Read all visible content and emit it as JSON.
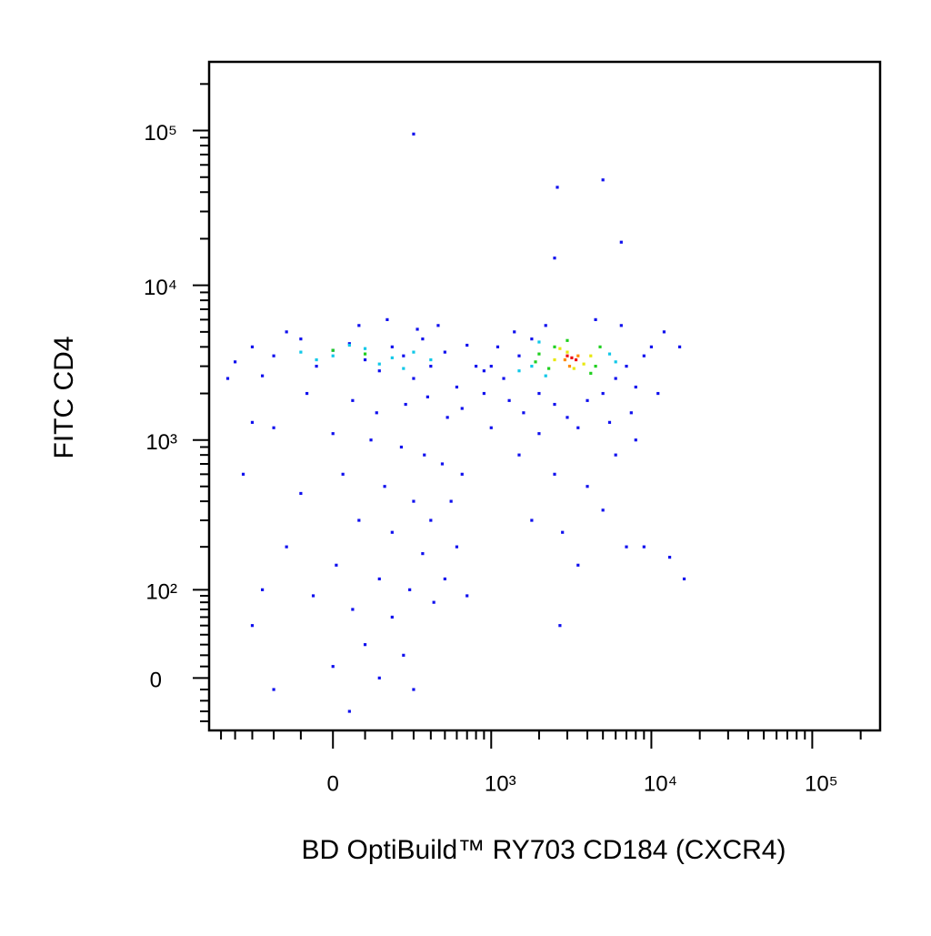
{
  "chart_data": {
    "type": "scatter",
    "xlabel": "BD OptiBuild™ RY703 CD184 (CXCR4)",
    "ylabel": "FITC CD4",
    "xscale": {
      "type": "asinh",
      "cofactor": 210
    },
    "yscale": {
      "type": "asinh",
      "cofactor": 58
    },
    "xlim": [
      -600,
      264000
    ],
    "ylim": [
      -50,
      278000
    ],
    "xticks": [
      0,
      {
        "value": 1000,
        "label": "10³"
      },
      {
        "value": 10000,
        "label": "10⁴"
      },
      {
        "value": 100000,
        "label": "10⁵"
      }
    ],
    "yticks": [
      0,
      {
        "value": 100,
        "label": "10²"
      },
      {
        "value": 1000,
        "label": "10³"
      },
      {
        "value": 10000,
        "label": "10⁴"
      },
      {
        "value": 100000,
        "label": "10⁵"
      }
    ],
    "xminorticks": [
      -500,
      -400,
      -300,
      -200,
      -100,
      100,
      200,
      300,
      400,
      500,
      600,
      700,
      800,
      900,
      2000,
      3000,
      4000,
      5000,
      6000,
      7000,
      8000,
      9000,
      20000,
      30000,
      40000,
      50000,
      60000,
      70000,
      80000,
      90000,
      200000
    ],
    "yminorticks": [
      -40,
      -30,
      -20,
      -10,
      10,
      20,
      30,
      40,
      50,
      60,
      70,
      80,
      90,
      200,
      300,
      400,
      500,
      600,
      700,
      800,
      900,
      2000,
      3000,
      4000,
      5000,
      6000,
      7000,
      8000,
      9000,
      20000,
      30000,
      40000,
      50000,
      60000,
      70000,
      80000,
      90000,
      200000
    ],
    "series": [
      {
        "color": "#1010ee",
        "x": [
          -300,
          -200,
          -100,
          -50,
          0,
          50,
          100,
          150,
          200,
          250,
          300,
          350,
          400,
          500,
          600,
          700,
          800,
          -400,
          -250,
          -150,
          80,
          180,
          320,
          450,
          -80,
          60,
          140,
          260,
          380,
          520,
          650,
          -200,
          0,
          120,
          240,
          360,
          480,
          30,
          170,
          300,
          -100,
          80,
          200,
          400,
          -150,
          10,
          150,
          280,
          350,
          -60,
          60,
          200,
          420,
          -250,
          -300,
          100,
          250,
          0,
          150,
          300,
          50,
          -200,
          500,
          600,
          700,
          550,
          650,
          -350,
          -300,
          -450,
          1200,
          1500,
          1800,
          2000,
          1300,
          1600,
          2500,
          3000,
          4000,
          5000,
          6000,
          7000,
          8000,
          9000,
          10000,
          12000,
          15000,
          11000,
          6500,
          4500,
          2200,
          1400,
          1100,
          7500,
          5500,
          3500,
          2000,
          1500,
          2500,
          4000,
          6000,
          1800,
          2800,
          3500,
          5000,
          7000,
          9000,
          13000,
          16000,
          2700,
          8000,
          1000,
          900,
          1000,
          900,
          2600,
          5000,
          6500,
          2500,
          300
        ],
        "y": [
          4000,
          3500,
          4500,
          3000,
          3800,
          4200,
          3300,
          2800,
          4000,
          3500,
          2500,
          4500,
          3000,
          3700,
          2200,
          4100,
          3000,
          3200,
          2600,
          5000,
          5500,
          6000,
          5200,
          5500,
          2000,
          1800,
          1500,
          1700,
          1900,
          1400,
          1600,
          1200,
          1100,
          1000,
          900,
          800,
          700,
          600,
          500,
          400,
          450,
          300,
          250,
          300,
          200,
          150,
          120,
          100,
          180,
          90,
          70,
          60,
          80,
          100,
          50,
          30,
          20,
          10,
          0,
          -10,
          -30,
          -10,
          120,
          200,
          90,
          400,
          600,
          600,
          1300,
          2500,
          2500,
          3500,
          4500,
          2000,
          1800,
          1500,
          1700,
          1400,
          1800,
          2000,
          2500,
          3000,
          2200,
          3500,
          4000,
          5000,
          4000,
          2000,
          5500,
          6000,
          5500,
          5000,
          4000,
          1500,
          1300,
          1200,
          1100,
          800,
          600,
          500,
          800,
          300,
          250,
          150,
          350,
          200,
          200,
          170,
          120,
          50,
          1000,
          1200,
          2000,
          3000,
          2800,
          43000,
          48000,
          19000,
          15000,
          95000
        ]
      },
      {
        "color": "#10c8e8",
        "x": [
          -100,
          0,
          100,
          200,
          300,
          150,
          50,
          250,
          1800,
          2200,
          5500,
          1500,
          400,
          -50,
          6000,
          2000
        ],
        "y": [
          3700,
          3500,
          3900,
          3400,
          3700,
          3100,
          4100,
          2900,
          3000,
          2600,
          3600,
          2800,
          3300,
          3300,
          3200,
          4300
        ]
      },
      {
        "color": "#20d020",
        "x": [
          2000,
          2500,
          2300,
          4500,
          4800,
          3000,
          1900,
          4200,
          0,
          100
        ],
        "y": [
          3600,
          4000,
          2900,
          3000,
          4000,
          4400,
          3200,
          2700,
          3800,
          3600
        ]
      },
      {
        "color": "#e8e810",
        "x": [
          2500,
          3000,
          3800,
          3300,
          2700,
          4200
        ],
        "y": [
          3300,
          3700,
          3100,
          2900,
          3900,
          3500
        ]
      },
      {
        "color": "#ff8c00",
        "x": [
          2900,
          3500,
          3100
        ],
        "y": [
          3300,
          3500,
          3000
        ]
      },
      {
        "color": "#ee1010",
        "x": [
          3200,
          3000,
          3400
        ],
        "y": [
          3400,
          3500,
          3300
        ]
      }
    ]
  }
}
